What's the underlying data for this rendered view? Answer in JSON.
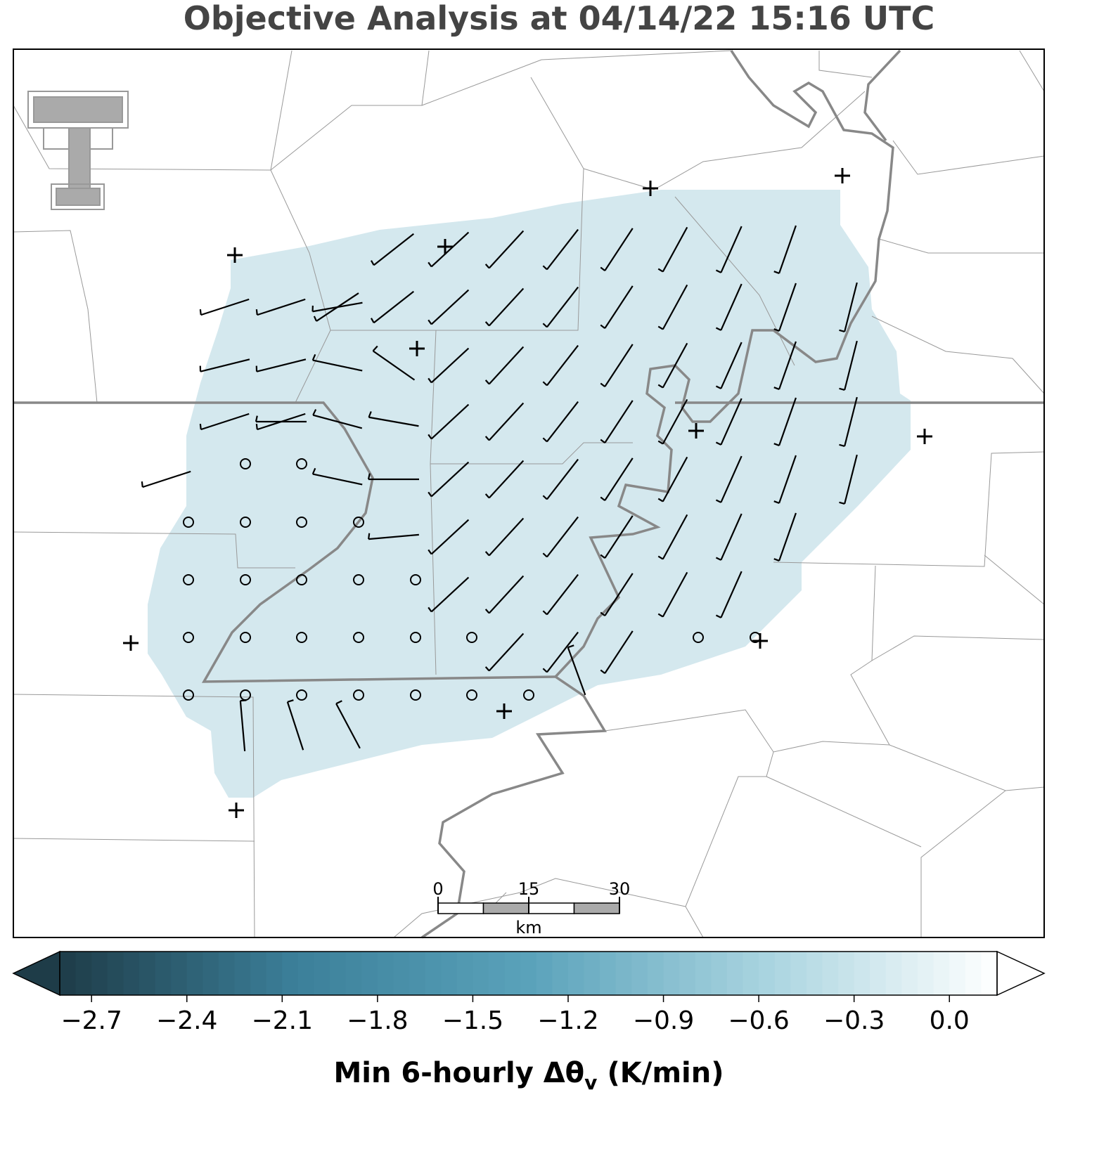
{
  "title": "Objective Analysis at 04/14/22 15:16 UTC",
  "scale_bar": {
    "ticks": [
      0,
      15,
      30
    ],
    "unit": "km"
  },
  "colorbar": {
    "range": [
      -2.8,
      0.15
    ],
    "step": 0.05,
    "colors": [
      "#1e3c48",
      "#3b7f99",
      "#5aa2ba",
      "#a8d3df",
      "#ffffff"
    ],
    "extend": "both",
    "ticks": [
      {
        "value": -2.7,
        "label": "−2.7"
      },
      {
        "value": -2.4,
        "label": "−2.4"
      },
      {
        "value": -2.1,
        "label": "−2.1"
      },
      {
        "value": -1.8,
        "label": "−1.8"
      },
      {
        "value": -1.5,
        "label": "−1.5"
      },
      {
        "value": -1.2,
        "label": "−1.2"
      },
      {
        "value": -0.9,
        "label": "−0.9"
      },
      {
        "value": -0.6,
        "label": "−0.6"
      },
      {
        "value": -0.3,
        "label": "−0.3"
      },
      {
        "value": 0,
        "label": "0.0"
      }
    ],
    "label": {
      "text": "Min 6-hourly Δθ",
      "subscript": "v",
      "units": "(K/min)"
    }
  }
}
